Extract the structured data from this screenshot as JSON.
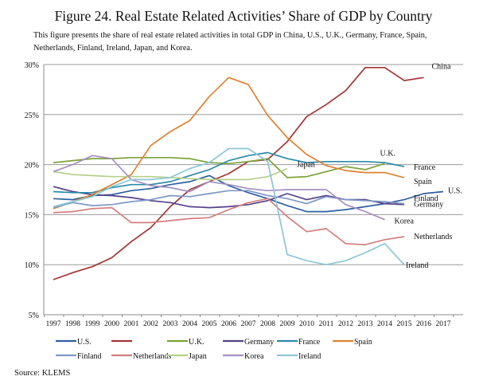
{
  "title": "Figure 24. Real Estate Related Activities’ Share of GDP by Country",
  "subtitle": "This figure presents the share of real estate related activities in total GDP in China, U.S., U.K., Germany, France, Spain, Netherlands, Finland, Ireland, Japan, and Korea.",
  "source": "Source: KLEMS",
  "chart_data": {
    "type": "line",
    "title": "Figure 24. Real Estate Related Activities’ Share of GDP by Country",
    "xlabel": "",
    "ylabel": "",
    "x": [
      1997,
      1998,
      1999,
      2000,
      2001,
      2002,
      2003,
      2004,
      2005,
      2006,
      2007,
      2008,
      2009,
      2010,
      2011,
      2012,
      2013,
      2014,
      2015,
      2016,
      2017
    ],
    "ylim": [
      5,
      30
    ],
    "yticks": [
      5,
      10,
      15,
      20,
      25,
      30
    ],
    "ytick_labels": [
      "5%",
      "10%",
      "15%",
      "20%",
      "25%",
      "30%"
    ],
    "grid": true,
    "legend_position": "bottom",
    "series": [
      {
        "name": "U.S.",
        "legend_label": "U.S.",
        "end_label": "U.S.",
        "color": "#2e5f9e",
        "values": [
          16.6,
          16.5,
          16.9,
          17.0,
          17.4,
          17.6,
          18.0,
          18.3,
          18.9,
          17.9,
          17.2,
          16.6,
          15.9,
          15.3,
          15.3,
          15.5,
          15.8,
          16.1,
          16.5,
          17.1,
          17.3
        ]
      },
      {
        "name": "China",
        "legend_label": "",
        "end_label": "China",
        "color": "#a33535",
        "values": [
          8.5,
          9.2,
          9.8,
          10.7,
          12.3,
          13.7,
          15.8,
          17.5,
          18.3,
          19.1,
          20.3,
          20.5,
          22.3,
          24.8,
          26.0,
          27.4,
          29.7,
          29.7,
          28.4,
          28.7,
          null
        ]
      },
      {
        "name": "U.K.",
        "legend_label": "U.K.",
        "end_label": "U.K.",
        "color": "#7da23a",
        "values": [
          20.2,
          20.4,
          20.6,
          20.6,
          20.7,
          20.7,
          20.7,
          20.6,
          20.2,
          20.1,
          20.3,
          20.6,
          18.7,
          18.8,
          19.3,
          19.8,
          19.5,
          20.1,
          null,
          null,
          null
        ]
      },
      {
        "name": "Germany",
        "legend_label": "Germany",
        "end_label": "Germany",
        "color": "#55418a",
        "values": [
          17.8,
          17.3,
          17.0,
          16.9,
          16.7,
          16.4,
          16.2,
          15.8,
          15.7,
          15.8,
          16.0,
          16.4,
          17.1,
          16.5,
          16.9,
          16.5,
          16.5,
          16.1,
          16.0,
          null,
          null
        ]
      },
      {
        "name": "France",
        "legend_label": "France",
        "end_label": "France",
        "color": "#2a8ba8",
        "values": [
          17.3,
          17.2,
          17.2,
          17.7,
          18.0,
          18.0,
          18.3,
          18.9,
          19.5,
          20.4,
          20.9,
          21.2,
          20.6,
          20.2,
          20.3,
          20.3,
          20.3,
          20.2,
          19.8,
          null,
          null
        ]
      },
      {
        "name": "Spain",
        "legend_label": "Spain",
        "end_label": "Spain",
        "color": "#e0812f",
        "values": [
          15.6,
          16.3,
          17.0,
          18.0,
          19.0,
          21.9,
          23.3,
          24.4,
          26.8,
          28.7,
          28.0,
          24.9,
          22.7,
          21.0,
          19.9,
          19.4,
          19.2,
          19.2,
          18.7,
          null,
          null
        ]
      },
      {
        "name": "Finland",
        "legend_label": "Finland",
        "end_label": "Finland",
        "color": "#7f98c7",
        "values": [
          15.7,
          16.2,
          15.9,
          16.0,
          16.3,
          16.5,
          16.9,
          16.8,
          17.1,
          17.4,
          17.4,
          16.9,
          16.6,
          16.1,
          16.8,
          16.5,
          16.4,
          16.3,
          16.1,
          null,
          null
        ]
      },
      {
        "name": "Netherlands",
        "legend_label": "Netherlands",
        "end_label": "Netherlands",
        "color": "#d47f7f",
        "values": [
          15.2,
          15.3,
          15.6,
          15.7,
          14.2,
          14.2,
          14.4,
          14.6,
          14.7,
          15.5,
          16.2,
          16.6,
          14.8,
          13.3,
          13.6,
          12.1,
          12.0,
          12.5,
          12.8,
          null,
          null
        ]
      },
      {
        "name": "Japan",
        "legend_label": "Japan",
        "end_label": "Japan",
        "color": "#b5d08a",
        "values": [
          19.3,
          19.0,
          18.9,
          18.8,
          18.8,
          18.8,
          18.7,
          18.6,
          18.5,
          18.5,
          18.5,
          18.8,
          19.6,
          null,
          null,
          null,
          null,
          null,
          null,
          null,
          null
        ]
      },
      {
        "name": "Korea",
        "legend_label": "Korea",
        "end_label": "Korea",
        "color": "#a590c0",
        "values": [
          19.3,
          20.0,
          20.9,
          20.6,
          18.5,
          17.9,
          17.7,
          17.3,
          18.3,
          18.0,
          17.6,
          17.4,
          17.5,
          17.5,
          17.5,
          16.0,
          15.3,
          14.5,
          null,
          null,
          null
        ]
      },
      {
        "name": "Ireland",
        "legend_label": "Ireland",
        "end_label": "Ireland",
        "color": "#8cc6d6",
        "values": [
          15.8,
          16.3,
          16.8,
          17.8,
          18.5,
          18.5,
          18.7,
          19.6,
          20.2,
          21.6,
          21.6,
          20.3,
          11.0,
          10.4,
          10.0,
          10.4,
          11.2,
          12.1,
          10.0,
          null,
          null
        ]
      }
    ],
    "end_labels": [
      {
        "series": "China",
        "text": "China",
        "anchor_year": 2016,
        "anchor_value": 29.8
      },
      {
        "series": "U.K.",
        "text": "U.K.",
        "anchor_year": 2014,
        "anchor_value": 20.4
      },
      {
        "series": "France",
        "text": "France",
        "anchor_year": 2015,
        "anchor_value": 19.8
      },
      {
        "series": "Spain",
        "text": "Spain",
        "anchor_year": 2015,
        "anchor_value": 18.7
      },
      {
        "series": "Japan",
        "text": "Japan",
        "anchor_year": 2009,
        "anchor_value": 19.6
      },
      {
        "series": "U.S.",
        "text": "U.S.",
        "anchor_year": 2017,
        "anchor_value": 17.4
      },
      {
        "series": "Finland",
        "text": "Finland",
        "anchor_year": 2015,
        "anchor_value": 16.4
      },
      {
        "series": "Germany",
        "text": "Germany",
        "anchor_year": 2015,
        "anchor_value": 15.8
      },
      {
        "series": "Korea",
        "text": "Korea",
        "anchor_year": 2014,
        "anchor_value": 14.6
      },
      {
        "series": "Netherlands",
        "text": "Netherlands",
        "anchor_year": 2015,
        "anchor_value": 12.9
      },
      {
        "series": "Ireland",
        "text": "Ireland",
        "anchor_year": 2015,
        "anchor_value": 10.0
      }
    ]
  }
}
